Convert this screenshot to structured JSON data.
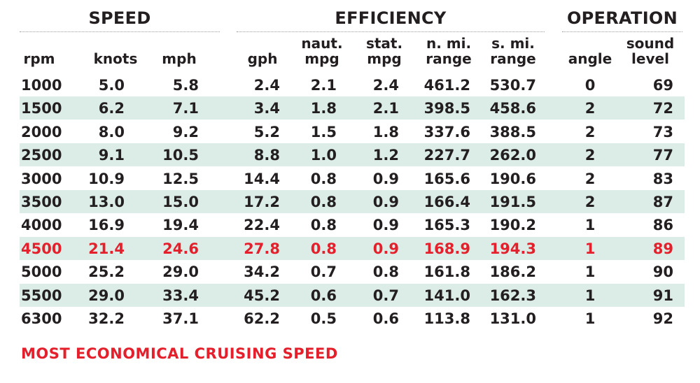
{
  "groups": [
    {
      "id": "speed",
      "label": "SPEED"
    },
    {
      "id": "efficiency",
      "label": "EFFICIENCY"
    },
    {
      "id": "operation",
      "label": "OPERATION"
    }
  ],
  "columns": [
    {
      "key": "rpm",
      "label": "rpm"
    },
    {
      "key": "knots",
      "label": "knots"
    },
    {
      "key": "mph",
      "label": "mph"
    },
    {
      "key": "gph",
      "label": "gph"
    },
    {
      "key": "naut_mpg",
      "label": "naut.\nmpg"
    },
    {
      "key": "stat_mpg",
      "label": "stat.\nmpg"
    },
    {
      "key": "n_mi_range",
      "label": "n. mi.\nrange"
    },
    {
      "key": "s_mi_range",
      "label": "s. mi.\nrange"
    },
    {
      "key": "angle",
      "label": "angle"
    },
    {
      "key": "sound_level",
      "label": "sound\nlevel"
    }
  ],
  "highlight_color": "#e3202b",
  "stripe_color": "#dcece6",
  "chart_data": {
    "type": "table",
    "column_groups": [
      {
        "label": "SPEED",
        "columns": [
          "rpm",
          "knots",
          "mph"
        ]
      },
      {
        "label": "EFFICIENCY",
        "columns": [
          "gph",
          "naut. mpg",
          "stat. mpg",
          "n. mi. range",
          "s. mi. range"
        ]
      },
      {
        "label": "OPERATION",
        "columns": [
          "angle",
          "sound level"
        ]
      }
    ],
    "headers": [
      "rpm",
      "knots",
      "mph",
      "gph",
      "naut. mpg",
      "stat. mpg",
      "n. mi. range",
      "s. mi. range",
      "angle",
      "sound level"
    ],
    "rows": [
      [
        "1000",
        "5.0",
        "5.8",
        "2.4",
        "2.1",
        "2.4",
        "461.2",
        "530.7",
        "0",
        "69"
      ],
      [
        "1500",
        "6.2",
        "7.1",
        "3.4",
        "1.8",
        "2.1",
        "398.5",
        "458.6",
        "2",
        "72"
      ],
      [
        "2000",
        "8.0",
        "9.2",
        "5.2",
        "1.5",
        "1.8",
        "337.6",
        "388.5",
        "2",
        "73"
      ],
      [
        "2500",
        "9.1",
        "10.5",
        "8.8",
        "1.0",
        "1.2",
        "227.7",
        "262.0",
        "2",
        "77"
      ],
      [
        "3000",
        "10.9",
        "12.5",
        "14.4",
        "0.8",
        "0.9",
        "165.6",
        "190.6",
        "2",
        "83"
      ],
      [
        "3500",
        "13.0",
        "15.0",
        "17.2",
        "0.8",
        "0.9",
        "166.4",
        "191.5",
        "2",
        "87"
      ],
      [
        "4000",
        "16.9",
        "19.4",
        "22.4",
        "0.8",
        "0.9",
        "165.3",
        "190.2",
        "1",
        "86"
      ],
      [
        "4500",
        "21.4",
        "24.6",
        "27.8",
        "0.8",
        "0.9",
        "168.9",
        "194.3",
        "1",
        "89"
      ],
      [
        "5000",
        "25.2",
        "29.0",
        "34.2",
        "0.7",
        "0.8",
        "161.8",
        "186.2",
        "1",
        "90"
      ],
      [
        "5500",
        "29.0",
        "33.4",
        "45.2",
        "0.6",
        "0.7",
        "141.0",
        "162.3",
        "1",
        "91"
      ],
      [
        "6300",
        "32.2",
        "37.1",
        "62.2",
        "0.5",
        "0.6",
        "113.8",
        "131.0",
        "1",
        "92"
      ]
    ],
    "highlight_row": 7,
    "note": "MOST ECONOMICAL CRUISING SPEED"
  }
}
